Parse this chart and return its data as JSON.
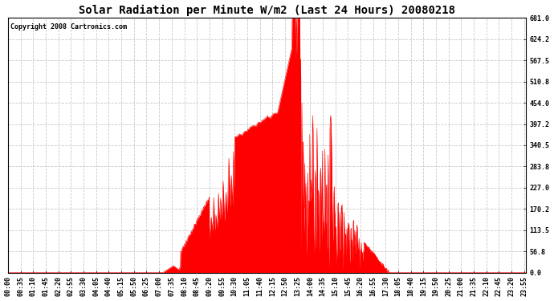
{
  "title": "Solar Radiation per Minute W/m2 (Last 24 Hours) 20080218",
  "copyright": "Copyright 2008 Cartronics.com",
  "fill_color": "#FF0000",
  "line_color": "#FF0000",
  "bg_color": "#FFFFFF",
  "grid_color": "#BBBBBB",
  "zero_line_color": "#FF0000",
  "ylim": [
    0.0,
    681.0
  ],
  "yticks": [
    0.0,
    56.8,
    113.5,
    170.2,
    227.0,
    283.8,
    340.5,
    397.2,
    454.0,
    510.8,
    567.5,
    624.2,
    681.0
  ],
  "total_minutes": 1440,
  "xlabel_interval": 35,
  "title_fontsize": 10,
  "copyright_fontsize": 6,
  "tick_fontsize": 6
}
